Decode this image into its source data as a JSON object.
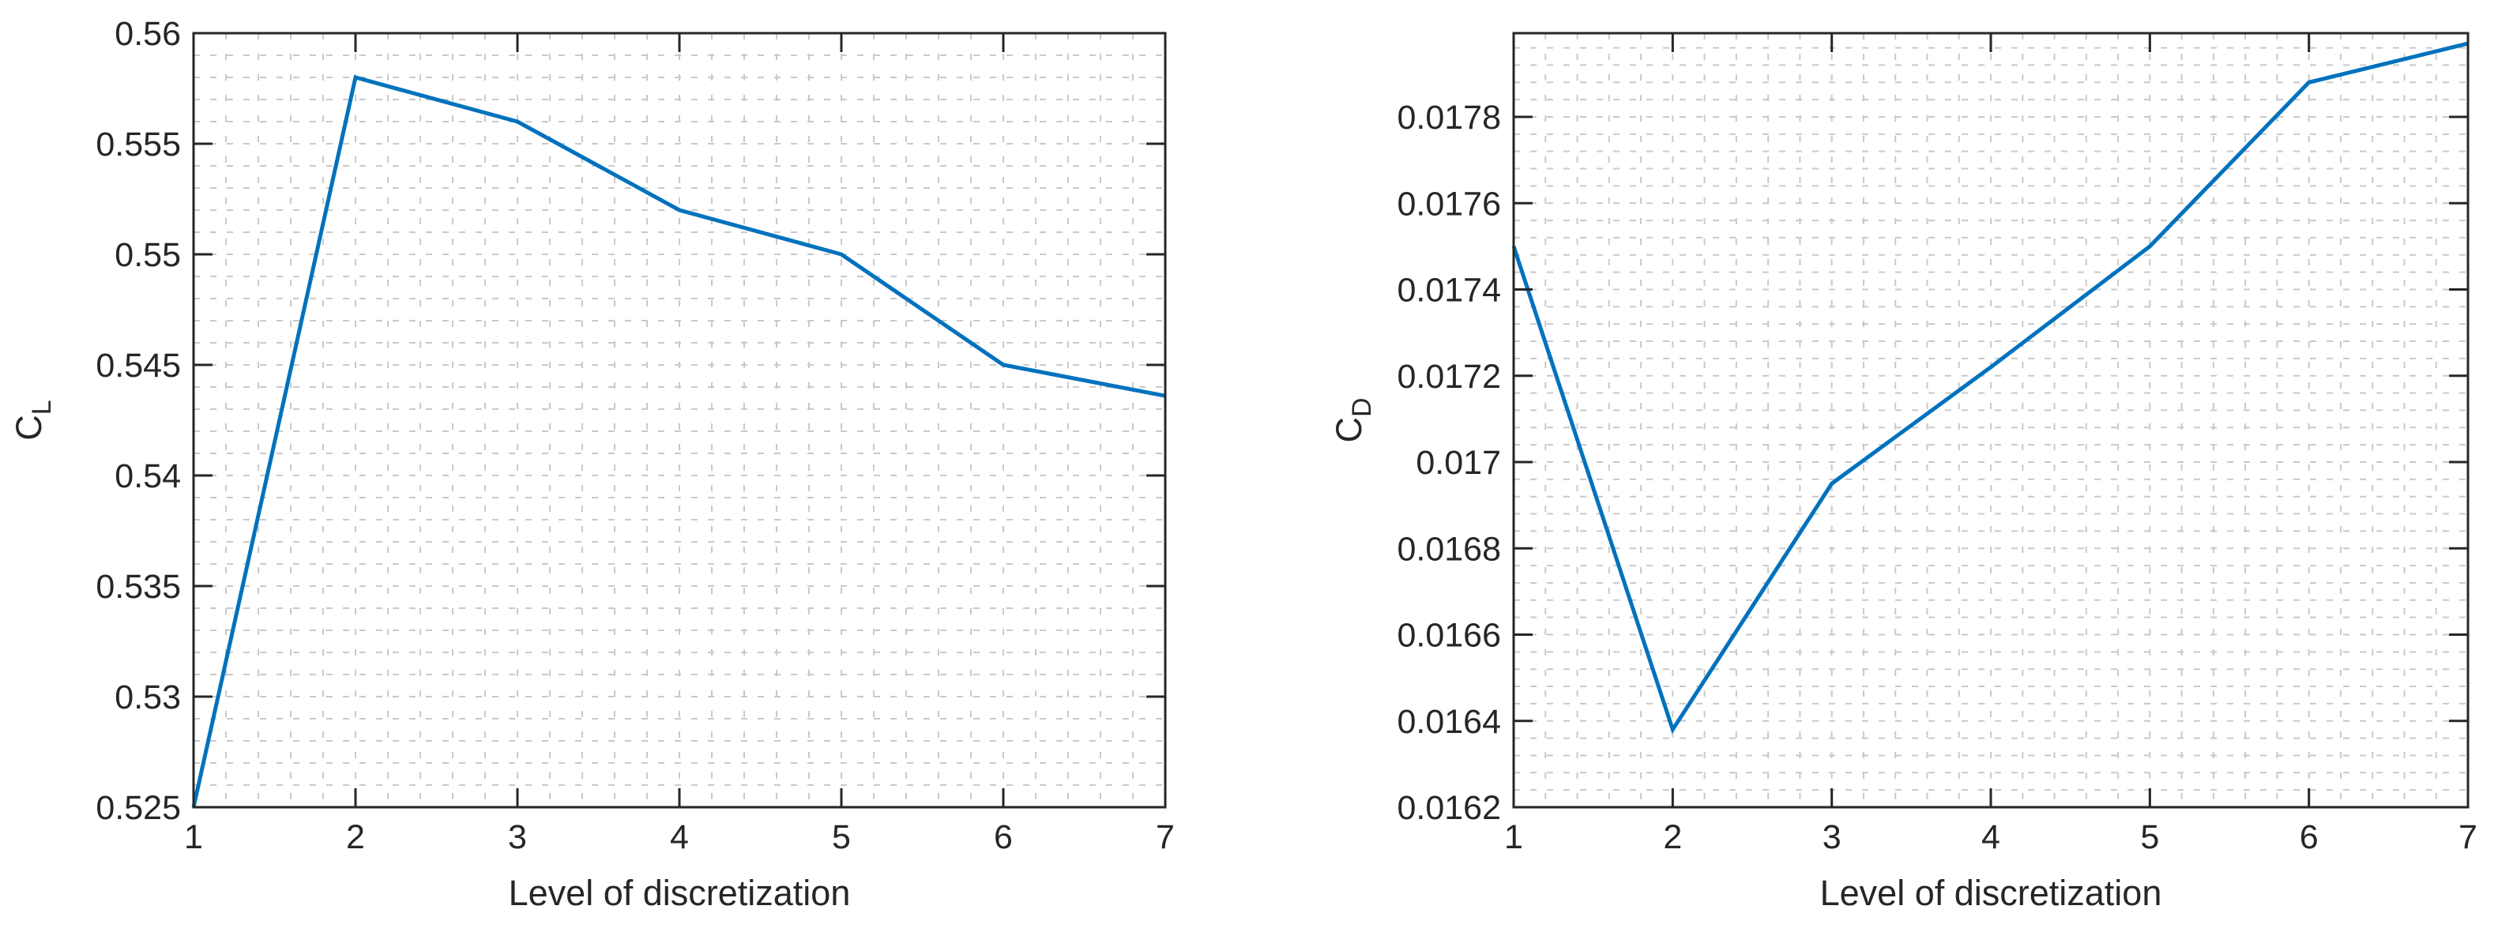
{
  "figure": {
    "background": "#ffffff",
    "colors": {
      "line": "#0072BD",
      "axis": "#262626",
      "tick_label": "#262626",
      "grid": "#c9c9c9"
    }
  },
  "chart_data": [
    {
      "id": "cl",
      "type": "line",
      "title": "",
      "xlabel": "Level of discretization",
      "ylabel": {
        "base": "C",
        "sub": "L"
      },
      "x": [
        1,
        2,
        3,
        4,
        5,
        6,
        7
      ],
      "values": [
        0.525,
        0.558,
        0.556,
        0.552,
        0.55,
        0.545,
        0.5436
      ],
      "xlim": [
        1,
        7
      ],
      "ylim": [
        0.525,
        0.56
      ],
      "xticks": [
        1,
        2,
        3,
        4,
        5,
        6,
        7
      ],
      "xtick_labels": [
        "1",
        "2",
        "3",
        "4",
        "5",
        "6",
        "7"
      ],
      "yticks": [
        0.525,
        0.53,
        0.535,
        0.54,
        0.545,
        0.55,
        0.555,
        0.56
      ],
      "ytick_labels": [
        "0.525",
        "0.53",
        "0.535",
        "0.54",
        "0.545",
        "0.55",
        "0.555",
        "0.56"
      ],
      "x_minor_step": 0.2,
      "y_minor_step": 0.001,
      "grid": true,
      "minor_grid": true,
      "legend": null
    },
    {
      "id": "cd",
      "type": "line",
      "title": "",
      "xlabel": "Level of discretization",
      "ylabel": {
        "base": "C",
        "sub": "D"
      },
      "x": [
        1,
        2,
        3,
        4,
        5,
        6,
        7
      ],
      "values": [
        0.0175,
        0.01638,
        0.01695,
        0.01722,
        0.0175,
        0.01788,
        0.01797
      ],
      "xlim": [
        1,
        7
      ],
      "ylim": [
        0.0162,
        0.017994
      ],
      "xticks": [
        1,
        2,
        3,
        4,
        5,
        6,
        7
      ],
      "xtick_labels": [
        "1",
        "2",
        "3",
        "4",
        "5",
        "6",
        "7"
      ],
      "yticks": [
        0.0162,
        0.0164,
        0.0166,
        0.0168,
        0.017,
        0.0172,
        0.0174,
        0.0176,
        0.0178
      ],
      "ytick_labels": [
        "0.0162",
        "0.0164",
        "0.0166",
        "0.0168",
        "0.017",
        "0.0172",
        "0.0174",
        "0.0176",
        "0.0178"
      ],
      "x_minor_step": 0.2,
      "y_minor_step": 4e-05,
      "grid": true,
      "minor_grid": true,
      "legend": null
    }
  ]
}
